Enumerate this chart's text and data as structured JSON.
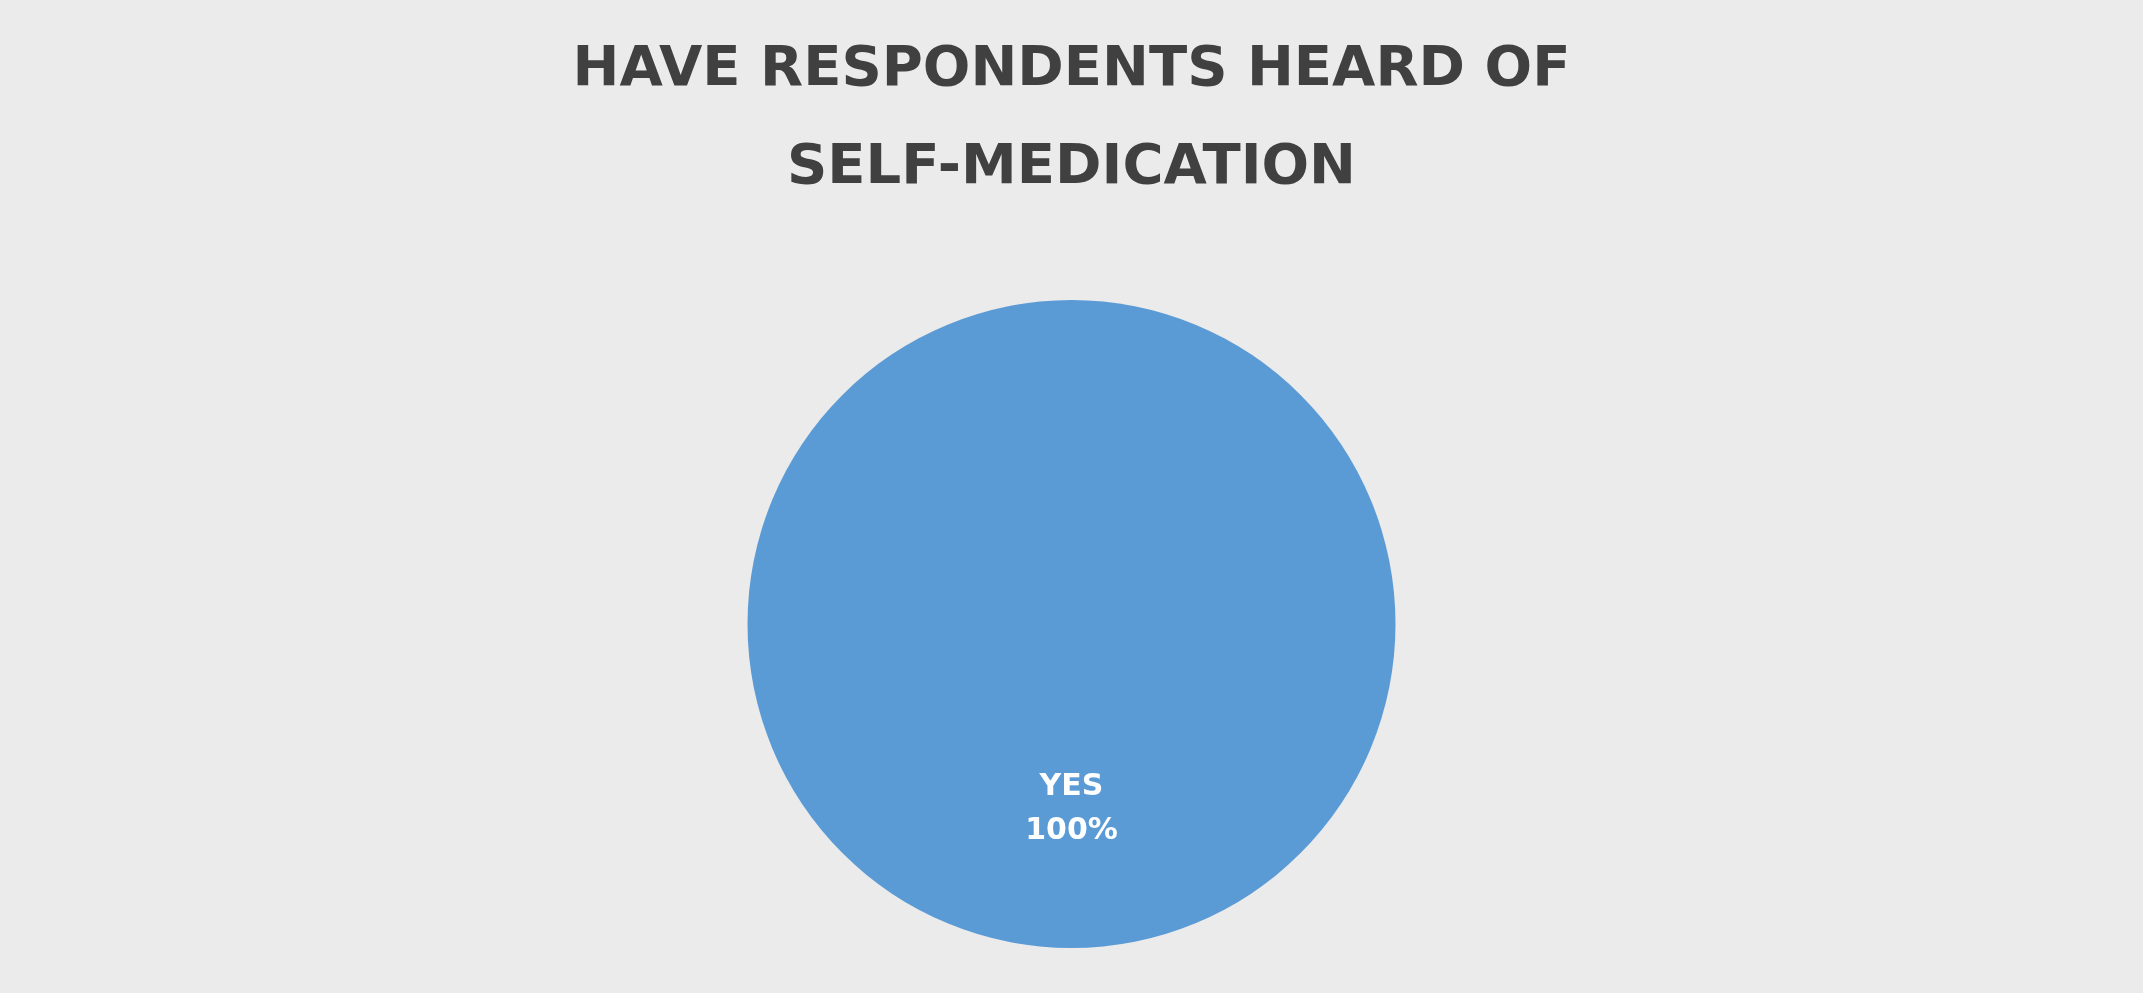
{
  "chart_data": {
    "type": "pie",
    "title": "HAVE RESPONDENTS HEARD OF SELF-MEDICATION",
    "categories": [
      "YES"
    ],
    "values": [
      100
    ],
    "colors": [
      "#5b9bd5"
    ],
    "value_labels": [
      "100%"
    ]
  }
}
